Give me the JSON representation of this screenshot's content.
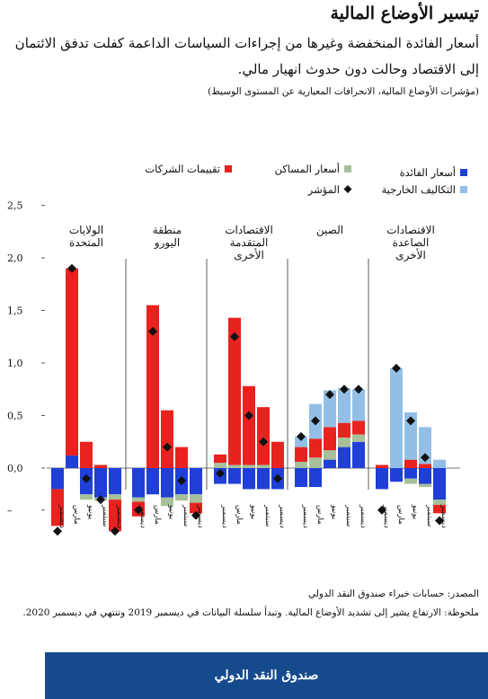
{
  "title": "تيسير الأوضاع المالية",
  "subtitle": "أسعار الفائدة المنخفضة وغيرها من إجراءات السياسات الداعمة كفلت تدفق الائتمان إلى الاقتصاد وحالت دون حدوث انهيار مالي.",
  "subnote": "(مؤشرات الأوضاع المالية، الانحرافات المعيارية عن المستوى الوسيط)",
  "source": "المصدر: حسابات خبراء صندوق النقد الدولي",
  "note": "ملحوظة: الارتفاع يشير إلى تشديد الأوضاع المالية. وتبدأ سلسلة البيانات في ديسمبر 2019 وتنتهي في ديسمبر 2020.",
  "footer": "صندوق النقد الدولي",
  "colors": {
    "interest": "#1f3fd6",
    "housing": "#a8c09a",
    "corporate": "#e8231f",
    "external": "#93bfe6",
    "index": "#111111"
  },
  "chart_data": {
    "type": "bar",
    "stacked": true,
    "ylim": [
      -0.4,
      2.5
    ],
    "yticks": [
      "2,5",
      "2,0",
      "1,5",
      "1,0",
      "0,5",
      "0,0",
      "–"
    ],
    "ytick_values": [
      2.5,
      2.0,
      1.5,
      1.0,
      0.5,
      0.0,
      -0.4
    ],
    "legend": [
      {
        "key": "interest",
        "label": "أسعار الفائدة"
      },
      {
        "key": "housing",
        "label": "أسعار المساكن"
      },
      {
        "key": "corporate",
        "label": "تقييمات الشركات"
      },
      {
        "key": "external",
        "label": "التكاليف الخارجية"
      },
      {
        "key": "index",
        "label": "المؤشر"
      }
    ],
    "month_labels": [
      "ديسمبر",
      "مارس",
      "يونيو",
      "سبتمبر",
      "ديسمبر"
    ],
    "groups": [
      {
        "label": "الولايات المتحدة",
        "bars": [
          {
            "interest": -0.2,
            "housing": 0,
            "corporate": -0.35,
            "external": 0,
            "index": -0.6
          },
          {
            "interest": 0.12,
            "housing": 0,
            "corporate": 1.78,
            "external": 0,
            "index": 1.9
          },
          {
            "interest": -0.25,
            "housing": -0.05,
            "corporate": 0.25,
            "external": 0,
            "index": -0.1
          },
          {
            "interest": -0.28,
            "housing": -0.03,
            "corporate": 0.03,
            "external": 0,
            "index": -0.3
          },
          {
            "interest": -0.25,
            "housing": -0.05,
            "corporate": -0.3,
            "external": 0,
            "index": -0.6
          }
        ]
      },
      {
        "label": "منطقة اليورو",
        "bars": [
          {
            "interest": -0.28,
            "housing": -0.04,
            "corporate": -0.14,
            "external": 0,
            "index": -0.4
          },
          {
            "interest": -0.25,
            "housing": 0,
            "corporate": 1.55,
            "external": 0,
            "index": 1.3
          },
          {
            "interest": -0.28,
            "housing": -0.08,
            "corporate": 0.55,
            "external": 0,
            "index": 0.2
          },
          {
            "interest": -0.25,
            "housing": -0.06,
            "corporate": 0.2,
            "external": 0,
            "index": -0.12
          },
          {
            "interest": -0.25,
            "housing": -0.08,
            "corporate": -0.1,
            "external": 0,
            "index": -0.45
          }
        ]
      },
      {
        "label": "الاقتصادات المتقدمة الأخرى",
        "bars": [
          {
            "interest": -0.15,
            "housing": 0.05,
            "corporate": 0.08,
            "external": 0,
            "index": -0.05
          },
          {
            "interest": -0.15,
            "housing": 0.03,
            "corporate": 1.4,
            "external": 0,
            "index": 1.25
          },
          {
            "interest": -0.2,
            "housing": 0.03,
            "corporate": 0.75,
            "external": 0,
            "index": 0.5
          },
          {
            "interest": -0.2,
            "housing": 0.03,
            "corporate": 0.55,
            "external": 0,
            "index": 0.25
          },
          {
            "interest": -0.2,
            "housing": 0.0,
            "corporate": 0.25,
            "external": 0,
            "index": -0.1
          }
        ]
      },
      {
        "label": "الصين",
        "bars": [
          {
            "interest": -0.18,
            "housing": 0.06,
            "corporate": 0.14,
            "external": 0.1,
            "index": 0.3
          },
          {
            "interest": -0.18,
            "housing": 0.1,
            "corporate": 0.18,
            "external": 0.33,
            "index": 0.45
          },
          {
            "interest": 0.08,
            "housing": 0.09,
            "corporate": 0.22,
            "external": 0.35,
            "index": 0.7
          },
          {
            "interest": 0.2,
            "housing": 0.09,
            "corporate": 0.14,
            "external": 0.33,
            "index": 0.75
          },
          {
            "interest": 0.25,
            "housing": 0.07,
            "corporate": 0.13,
            "external": 0.3,
            "index": 0.75
          }
        ]
      },
      {
        "label": "الاقتصادات الصاعدة الأخرى",
        "bars": [
          {
            "interest": -0.2,
            "housing": 0,
            "corporate": 0.03,
            "external": 0,
            "index": -0.4
          },
          {
            "interest": -0.13,
            "housing": 0,
            "corporate": 0.0,
            "external": 0.95,
            "index": 0.95
          },
          {
            "interest": -0.1,
            "housing": -0.05,
            "corporate": 0.08,
            "external": 0.45,
            "index": 0.45
          },
          {
            "interest": -0.15,
            "housing": -0.03,
            "corporate": 0.04,
            "external": 0.35,
            "index": 0.1
          },
          {
            "interest": -0.3,
            "housing": -0.05,
            "corporate": -0.08,
            "external": 0.08,
            "index": -0.5
          }
        ]
      }
    ]
  }
}
